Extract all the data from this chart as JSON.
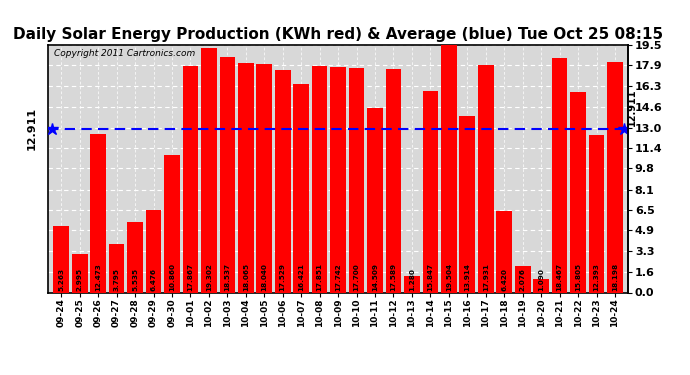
{
  "title": "Daily Solar Energy Production (KWh red) & Average (blue) Tue Oct 25 08:15",
  "copyright": "Copyright 2011 Cartronics.com",
  "categories": [
    "09-24",
    "09-25",
    "09-26",
    "09-27",
    "09-28",
    "09-29",
    "09-30",
    "10-01",
    "10-02",
    "10-03",
    "10-04",
    "10-05",
    "10-06",
    "10-07",
    "10-08",
    "10-09",
    "10-10",
    "10-11",
    "10-12",
    "10-13",
    "10-14",
    "10-15",
    "10-16",
    "10-17",
    "10-18",
    "10-19",
    "10-20",
    "10-21",
    "10-22",
    "10-23",
    "10-24"
  ],
  "values": [
    5.263,
    2.995,
    12.473,
    3.795,
    5.535,
    6.476,
    10.86,
    17.867,
    19.302,
    18.537,
    18.065,
    18.04,
    17.529,
    16.421,
    17.851,
    17.742,
    17.7,
    14.509,
    17.589,
    1.28,
    15.847,
    19.504,
    13.914,
    17.931,
    6.42,
    2.076,
    1.09,
    18.467,
    15.805,
    12.393,
    18.198
  ],
  "average": 12.911,
  "bar_color": "#ff0000",
  "avg_line_color": "#0000ff",
  "background_color": "#ffffff",
  "plot_bg_color": "#d8d8d8",
  "yticks_right": [
    0.0,
    1.6,
    3.3,
    4.9,
    6.5,
    8.1,
    9.8,
    11.4,
    13.0,
    14.6,
    16.3,
    17.9,
    19.5
  ],
  "ylim": [
    0,
    19.5
  ],
  "title_fontsize": 11,
  "avg_label": "12.911",
  "bar_width": 0.85
}
